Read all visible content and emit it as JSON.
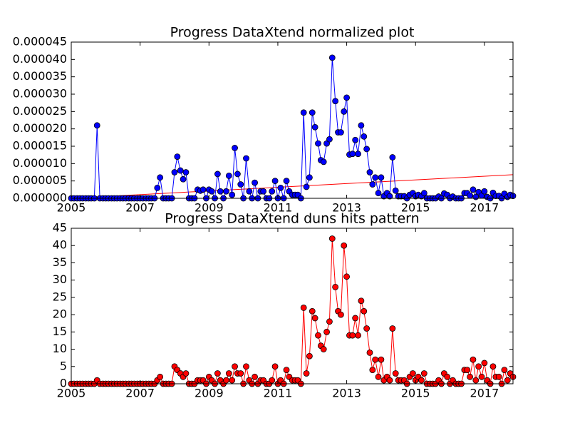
{
  "chart_data": [
    {
      "type": "line",
      "title": "Progress DataXtend normalized plot",
      "color": "#0000ff",
      "x": [
        2005,
        2005.08,
        2005.17,
        2005.25,
        2005.33,
        2005.42,
        2005.5,
        2005.58,
        2005.67,
        2005.75,
        2005.83,
        2005.92,
        2006,
        2006.08,
        2006.17,
        2006.25,
        2006.33,
        2006.42,
        2006.5,
        2006.58,
        2006.67,
        2006.75,
        2006.83,
        2006.92,
        2007,
        2007.08,
        2007.17,
        2007.25,
        2007.33,
        2007.42,
        2007.5,
        2007.58,
        2007.67,
        2007.75,
        2007.83,
        2007.92,
        2008,
        2008.08,
        2008.17,
        2008.25,
        2008.33,
        2008.42,
        2008.5,
        2008.58,
        2008.67,
        2008.75,
        2008.83,
        2008.92,
        2009,
        2009.08,
        2009.17,
        2009.25,
        2009.33,
        2009.42,
        2009.5,
        2009.58,
        2009.67,
        2009.75,
        2009.83,
        2009.92,
        2010,
        2010.08,
        2010.17,
        2010.25,
        2010.33,
        2010.42,
        2010.5,
        2010.58,
        2010.67,
        2010.75,
        2010.83,
        2010.92,
        2011,
        2011.08,
        2011.17,
        2011.25,
        2011.33,
        2011.42,
        2011.5,
        2011.58,
        2011.67,
        2011.75,
        2011.83,
        2011.92,
        2012,
        2012.08,
        2012.17,
        2012.25,
        2012.33,
        2012.42,
        2012.5,
        2012.58,
        2012.67,
        2012.75,
        2012.83,
        2012.92,
        2013,
        2013.08,
        2013.17,
        2013.25,
        2013.33,
        2013.42,
        2013.5,
        2013.58,
        2013.67,
        2013.75,
        2013.83,
        2013.92,
        2014,
        2014.08,
        2014.17,
        2014.25,
        2014.33,
        2014.42,
        2014.5,
        2014.58,
        2014.67,
        2014.75,
        2014.83,
        2014.92,
        2015,
        2015.08,
        2015.17,
        2015.25,
        2015.33,
        2015.42,
        2015.5,
        2015.58,
        2015.67,
        2015.75,
        2015.83,
        2015.92,
        2016,
        2016.08,
        2016.17,
        2016.25,
        2016.33,
        2016.42,
        2016.5,
        2016.58,
        2016.67,
        2016.75,
        2016.83,
        2016.92,
        2017,
        2017.08,
        2017.17,
        2017.25,
        2017.33,
        2017.42,
        2017.5,
        2017.58,
        2017.67,
        2017.75,
        2017.83
      ],
      "values": [
        0,
        0,
        0,
        0,
        0,
        0,
        0,
        0,
        0,
        2.1e-05,
        0,
        0,
        0,
        0,
        0,
        0,
        0,
        0,
        0,
        0,
        0,
        0,
        0,
        0,
        0,
        0,
        0,
        0,
        0,
        0,
        3e-06,
        6e-06,
        0,
        0,
        0,
        0,
        7.5e-06,
        1.2e-05,
        8e-06,
        5.5e-06,
        7.5e-06,
        0,
        0,
        0,
        2.5e-06,
        2.2e-06,
        2.5e-06,
        0,
        2.5e-06,
        2e-06,
        0,
        7e-06,
        2e-06,
        0,
        2e-06,
        6.5e-06,
        1e-06,
        1.45e-05,
        7e-06,
        4e-06,
        0,
        1.15e-05,
        2e-06,
        0,
        4.5e-06,
        0,
        2e-06,
        2e-06,
        0,
        0,
        2e-06,
        5e-06,
        0,
        3e-06,
        0,
        5e-06,
        2e-06,
        1e-06,
        1e-06,
        1e-06,
        0,
        2.47e-05,
        3.3e-06,
        6e-06,
        2.47e-05,
        2.05e-05,
        1.58e-05,
        1.1e-05,
        1.05e-05,
        1.58e-05,
        1.7e-05,
        4.05e-05,
        2.8e-05,
        1.9e-05,
        1.9e-05,
        2.5e-05,
        2.9e-05,
        1.26e-05,
        1.28e-05,
        1.68e-05,
        1.28e-05,
        2.1e-05,
        1.78e-05,
        1.42e-05,
        7.5e-06,
        4e-06,
        6e-06,
        1.5e-06,
        6e-06,
        6e-07,
        1.5e-06,
        6e-07,
        1.18e-05,
        2.2e-06,
        6e-07,
        6e-07,
        6e-07,
        0,
        1e-06,
        1.5e-06,
        6e-07,
        1e-06,
        6e-07,
        1.5e-06,
        0,
        0,
        0,
        0,
        5e-07,
        0,
        1.4e-06,
        1e-06,
        0,
        5e-07,
        0,
        0,
        0,
        1.5e-06,
        1.5e-06,
        8e-07,
        2.5e-06,
        4e-07,
        1.8e-06,
        8e-07,
        2e-06,
        4e-07,
        0,
        1.6e-06,
        7e-07,
        7e-07,
        0,
        1.3e-06,
        4e-07,
        1e-06,
        7e-07
      ],
      "trend": {
        "x": [
          2005,
          2017.83
        ],
        "values": [
          0,
          6.8e-06
        ],
        "color": "#ff0000"
      },
      "xlim": [
        2005,
        2017.83
      ],
      "xticks": [
        2005,
        2007,
        2009,
        2011,
        2013,
        2015,
        2017
      ],
      "ylim": [
        0,
        4.5e-05
      ],
      "yticks": [
        {
          "value": 0,
          "label": "0.000000"
        },
        {
          "value": 5e-06,
          "label": "0.000005"
        },
        {
          "value": 1e-05,
          "label": "0.000010"
        },
        {
          "value": 1.5e-05,
          "label": "0.000015"
        },
        {
          "value": 2e-05,
          "label": "0.000020"
        },
        {
          "value": 2.5e-05,
          "label": "0.000025"
        },
        {
          "value": 3e-05,
          "label": "0.000030"
        },
        {
          "value": 3.5e-05,
          "label": "0.000035"
        },
        {
          "value": 4e-05,
          "label": "0.000040"
        },
        {
          "value": 4.5e-05,
          "label": "0.000045"
        }
      ]
    },
    {
      "type": "line",
      "title": "Progress DataXtend duns hits pattern",
      "color": "#ff0000",
      "x": [
        2005,
        2005.08,
        2005.17,
        2005.25,
        2005.33,
        2005.42,
        2005.5,
        2005.58,
        2005.67,
        2005.75,
        2005.83,
        2005.92,
        2006,
        2006.08,
        2006.17,
        2006.25,
        2006.33,
        2006.42,
        2006.5,
        2006.58,
        2006.67,
        2006.75,
        2006.83,
        2006.92,
        2007,
        2007.08,
        2007.17,
        2007.25,
        2007.33,
        2007.42,
        2007.5,
        2007.58,
        2007.67,
        2007.75,
        2007.83,
        2007.92,
        2008,
        2008.08,
        2008.17,
        2008.25,
        2008.33,
        2008.42,
        2008.5,
        2008.58,
        2008.67,
        2008.75,
        2008.83,
        2008.92,
        2009,
        2009.08,
        2009.17,
        2009.25,
        2009.33,
        2009.42,
        2009.5,
        2009.58,
        2009.67,
        2009.75,
        2009.83,
        2009.92,
        2010,
        2010.08,
        2010.17,
        2010.25,
        2010.33,
        2010.42,
        2010.5,
        2010.58,
        2010.67,
        2010.75,
        2010.83,
        2010.92,
        2011,
        2011.08,
        2011.17,
        2011.25,
        2011.33,
        2011.42,
        2011.5,
        2011.58,
        2011.67,
        2011.75,
        2011.83,
        2011.92,
        2012,
        2012.08,
        2012.17,
        2012.25,
        2012.33,
        2012.42,
        2012.5,
        2012.58,
        2012.67,
        2012.75,
        2012.83,
        2012.92,
        2013,
        2013.08,
        2013.17,
        2013.25,
        2013.33,
        2013.42,
        2013.5,
        2013.58,
        2013.67,
        2013.75,
        2013.83,
        2013.92,
        2014,
        2014.08,
        2014.17,
        2014.25,
        2014.33,
        2014.42,
        2014.5,
        2014.58,
        2014.67,
        2014.75,
        2014.83,
        2014.92,
        2015,
        2015.08,
        2015.17,
        2015.25,
        2015.33,
        2015.42,
        2015.5,
        2015.58,
        2015.67,
        2015.75,
        2015.83,
        2015.92,
        2016,
        2016.08,
        2016.17,
        2016.25,
        2016.33,
        2016.42,
        2016.5,
        2016.58,
        2016.67,
        2016.75,
        2016.83,
        2016.92,
        2017,
        2017.08,
        2017.17,
        2017.25,
        2017.33,
        2017.42,
        2017.5,
        2017.58,
        2017.67,
        2017.75,
        2017.83
      ],
      "values": [
        0,
        0,
        0,
        0,
        0,
        0,
        0,
        0,
        0,
        1,
        0,
        0,
        0,
        0,
        0,
        0,
        0,
        0,
        0,
        0,
        0,
        0,
        0,
        0,
        0,
        0,
        0,
        0,
        0,
        0,
        1,
        2,
        0,
        0,
        0,
        0,
        5,
        4,
        3,
        2,
        3,
        0,
        0,
        0,
        1,
        1,
        1,
        0,
        2,
        1,
        0,
        3,
        1,
        0,
        1,
        3,
        1,
        5,
        3,
        3,
        0,
        5,
        1,
        0,
        2,
        0,
        1,
        1,
        0,
        0,
        1,
        5,
        0,
        1,
        0,
        4,
        2,
        1,
        1,
        1,
        0,
        22,
        3,
        8,
        21,
        19,
        14,
        11,
        10,
        15,
        18,
        42,
        28,
        21,
        20,
        40,
        31,
        14,
        14,
        19,
        14,
        24,
        21,
        16,
        9,
        4,
        7,
        2,
        7,
        1,
        2,
        1,
        16,
        3,
        1,
        1,
        1,
        0,
        2,
        3,
        1,
        2,
        1,
        3,
        0,
        0,
        0,
        0,
        1,
        0,
        3,
        2,
        0,
        1,
        0,
        0,
        0,
        4,
        4,
        2,
        7,
        1,
        5,
        2,
        6,
        1,
        0,
        5,
        2,
        2,
        0,
        4,
        1,
        3,
        2
      ],
      "xlim": [
        2005,
        2017.83
      ],
      "xticks": [
        2005,
        2007,
        2009,
        2011,
        2013,
        2015,
        2017
      ],
      "ylim": [
        0,
        45
      ],
      "yticks": [
        0,
        5,
        10,
        15,
        20,
        25,
        30,
        35,
        40,
        45
      ]
    }
  ]
}
